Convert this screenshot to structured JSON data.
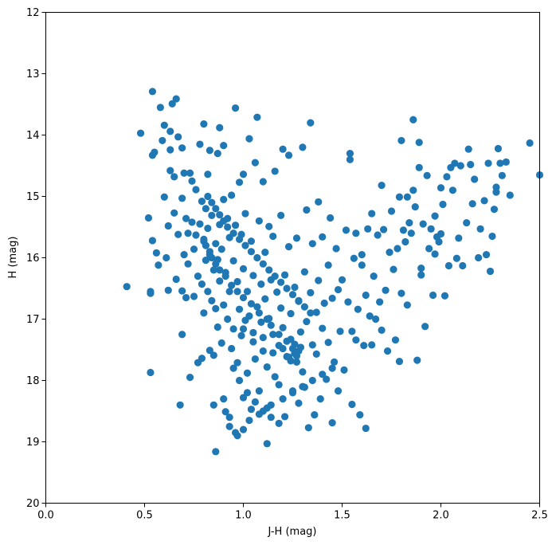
{
  "chart_data": {
    "type": "scatter",
    "title": "",
    "xlabel": "J-H (mag)",
    "ylabel": "H (mag)",
    "xlim": [
      0.0,
      2.5
    ],
    "ylim": [
      20,
      12
    ],
    "y_inverted": true,
    "grid": false,
    "legend": "none",
    "x_ticks": [
      "0.0",
      "0.5",
      "1.0",
      "1.5",
      "2.0",
      "2.5"
    ],
    "y_ticks": [
      "12",
      "13",
      "14",
      "15",
      "16",
      "17",
      "18",
      "19",
      "20"
    ],
    "marker_color": "#1f77b4",
    "points": [
      [
        0.41,
        16.47
      ],
      [
        0.48,
        13.97
      ],
      [
        0.52,
        15.35
      ],
      [
        0.53,
        16.55
      ],
      [
        0.53,
        16.58
      ],
      [
        0.53,
        17.87
      ],
      [
        0.54,
        13.29
      ],
      [
        0.54,
        14.33
      ],
      [
        0.54,
        15.72
      ],
      [
        0.55,
        14.28
      ],
      [
        0.56,
        15.92
      ],
      [
        0.57,
        16.12
      ],
      [
        0.58,
        13.55
      ],
      [
        0.59,
        14.09
      ],
      [
        0.6,
        13.84
      ],
      [
        0.6,
        15.01
      ],
      [
        0.61,
        16.0
      ],
      [
        0.62,
        15.48
      ],
      [
        0.62,
        16.53
      ],
      [
        0.63,
        13.94
      ],
      [
        0.63,
        14.24
      ],
      [
        0.63,
        14.58
      ],
      [
        0.64,
        13.49
      ],
      [
        0.65,
        14.68
      ],
      [
        0.65,
        15.27
      ],
      [
        0.66,
        13.41
      ],
      [
        0.66,
        16.35
      ],
      [
        0.67,
        14.03
      ],
      [
        0.67,
        15.62
      ],
      [
        0.68,
        18.4
      ],
      [
        0.69,
        14.21
      ],
      [
        0.69,
        15.03
      ],
      [
        0.69,
        16.54
      ],
      [
        0.69,
        17.25
      ],
      [
        0.7,
        14.62
      ],
      [
        0.7,
        15.95
      ],
      [
        0.71,
        15.36
      ],
      [
        0.71,
        16.65
      ],
      [
        0.72,
        15.6
      ],
      [
        0.72,
        16.1
      ],
      [
        0.73,
        17.95
      ],
      [
        0.73,
        14.62
      ],
      [
        0.74,
        14.75
      ],
      [
        0.74,
        15.42
      ],
      [
        0.75,
        16.63
      ],
      [
        0.75,
        15.86
      ],
      [
        0.76,
        15.63
      ],
      [
        0.76,
        14.89
      ],
      [
        0.77,
        17.71
      ],
      [
        0.77,
        16.3
      ],
      [
        0.78,
        14.15
      ],
      [
        0.78,
        15.45
      ],
      [
        0.79,
        15.08
      ],
      [
        0.79,
        16.43
      ],
      [
        0.79,
        17.64
      ],
      [
        0.8,
        13.82
      ],
      [
        0.8,
        15.73
      ],
      [
        0.8,
        16.9
      ],
      [
        0.81,
        15.2
      ],
      [
        0.81,
        16.04
      ],
      [
        0.82,
        14.64
      ],
      [
        0.82,
        15.52
      ],
      [
        0.82,
        16.55
      ],
      [
        0.83,
        14.25
      ],
      [
        0.83,
        15.95
      ],
      [
        0.83,
        17.51
      ],
      [
        0.84,
        15.31
      ],
      [
        0.84,
        16.7
      ],
      [
        0.85,
        17.59
      ],
      [
        0.85,
        16.2
      ],
      [
        0.85,
        18.4
      ],
      [
        0.86,
        19.16
      ],
      [
        0.86,
        15.77
      ],
      [
        0.86,
        16.83
      ],
      [
        0.87,
        14.3
      ],
      [
        0.87,
        16.03
      ],
      [
        0.87,
        17.13
      ],
      [
        0.88,
        13.88
      ],
      [
        0.88,
        15.46
      ],
      [
        0.88,
        16.38
      ],
      [
        0.89,
        15.86
      ],
      [
        0.89,
        17.39
      ],
      [
        0.9,
        14.17
      ],
      [
        0.9,
        15.05
      ],
      [
        0.9,
        16.77
      ],
      [
        0.91,
        18.51
      ],
      [
        0.91,
        16.24
      ],
      [
        0.92,
        15.36
      ],
      [
        0.92,
        17.0
      ],
      [
        0.93,
        15.67
      ],
      [
        0.93,
        18.75
      ],
      [
        0.93,
        16.55
      ],
      [
        0.94,
        17.48
      ],
      [
        0.94,
        14.98
      ],
      [
        0.95,
        16.05
      ],
      [
        0.95,
        17.16
      ],
      [
        0.96,
        13.56
      ],
      [
        0.96,
        18.85
      ],
      [
        0.96,
        15.47
      ],
      [
        0.97,
        16.39
      ],
      [
        0.97,
        17.71
      ],
      [
        0.98,
        14.77
      ],
      [
        0.98,
        16.84
      ],
      [
        0.99,
        15.62
      ],
      [
        0.99,
        17.27
      ],
      [
        1.0,
        14.64
      ],
      [
        1.0,
        16.18
      ],
      [
        1.0,
        18.28
      ],
      [
        1.01,
        17.02
      ],
      [
        1.01,
        15.28
      ],
      [
        1.02,
        16.55
      ],
      [
        1.02,
        17.88
      ],
      [
        1.03,
        14.06
      ],
      [
        1.03,
        16.95
      ],
      [
        1.04,
        15.73
      ],
      [
        1.04,
        18.47
      ],
      [
        1.05,
        16.29
      ],
      [
        1.05,
        17.37
      ],
      [
        1.06,
        14.45
      ],
      [
        1.06,
        17.65
      ],
      [
        1.07,
        13.71
      ],
      [
        1.07,
        16.8
      ],
      [
        1.08,
        15.4
      ],
      [
        1.08,
        18.17
      ],
      [
        1.09,
        16.43
      ],
      [
        1.09,
        17.05
      ],
      [
        1.1,
        14.76
      ],
      [
        1.1,
        17.52
      ],
      [
        1.11,
        15.91
      ],
      [
        1.11,
        16.67
      ],
      [
        1.12,
        19.03
      ],
      [
        1.12,
        17.78
      ],
      [
        1.13,
        15.49
      ],
      [
        1.13,
        16.99
      ],
      [
        1.14,
        18.4
      ],
      [
        1.14,
        16.36
      ],
      [
        1.15,
        17.25
      ],
      [
        1.15,
        15.65
      ],
      [
        1.16,
        14.59
      ],
      [
        1.16,
        17.94
      ],
      [
        1.17,
        16.56
      ],
      [
        1.18,
        17.43
      ],
      [
        1.18,
        18.07
      ],
      [
        1.19,
        15.31
      ],
      [
        1.19,
        16.82
      ],
      [
        1.2,
        14.23
      ],
      [
        1.2,
        17.14
      ],
      [
        1.21,
        18.59
      ],
      [
        1.21,
        16.28
      ],
      [
        1.22,
        17.61
      ],
      [
        1.23,
        14.33
      ],
      [
        1.23,
        15.82
      ],
      [
        1.24,
        16.91
      ],
      [
        1.24,
        17.33
      ],
      [
        1.25,
        18.17
      ],
      [
        1.25,
        17.48
      ],
      [
        1.26,
        16.48
      ],
      [
        1.26,
        17.56
      ],
      [
        1.27,
        15.68
      ],
      [
        1.27,
        17.7
      ],
      [
        1.28,
        18.37
      ],
      [
        1.28,
        16.71
      ],
      [
        1.29,
        17.21
      ],
      [
        1.3,
        14.2
      ],
      [
        1.3,
        17.86
      ],
      [
        1.31,
        16.23
      ],
      [
        1.31,
        18.11
      ],
      [
        1.32,
        15.22
      ],
      [
        1.32,
        17.04
      ],
      [
        1.33,
        18.77
      ],
      [
        1.34,
        13.8
      ],
      [
        1.34,
        16.57
      ],
      [
        1.35,
        17.42
      ],
      [
        1.35,
        15.77
      ],
      [
        1.36,
        18.56
      ],
      [
        1.37,
        16.89
      ],
      [
        1.37,
        17.57
      ],
      [
        1.38,
        15.09
      ],
      [
        1.38,
        16.37
      ],
      [
        1.39,
        18.3
      ],
      [
        1.4,
        17.15
      ],
      [
        1.4,
        15.66
      ],
      [
        1.41,
        16.74
      ],
      [
        1.42,
        17.98
      ],
      [
        1.43,
        16.12
      ],
      [
        1.43,
        17.38
      ],
      [
        1.44,
        15.35
      ],
      [
        1.45,
        18.69
      ],
      [
        1.45,
        16.66
      ],
      [
        1.46,
        17.7
      ],
      [
        1.47,
        15.85
      ],
      [
        1.48,
        16.52
      ],
      [
        1.48,
        18.17
      ],
      [
        1.49,
        17.2
      ],
      [
        1.5,
        16.36
      ],
      [
        1.51,
        17.83
      ],
      [
        1.52,
        15.55
      ],
      [
        1.53,
        16.72
      ],
      [
        1.54,
        14.3
      ],
      [
        1.54,
        14.4
      ],
      [
        1.55,
        17.2
      ],
      [
        1.55,
        18.39
      ],
      [
        1.56,
        16.01
      ],
      [
        1.57,
        15.6
      ],
      [
        1.57,
        17.34
      ],
      [
        1.58,
        16.84
      ],
      [
        1.59,
        18.56
      ],
      [
        1.6,
        16.12
      ],
      [
        1.6,
        15.95
      ],
      [
        1.61,
        17.43
      ],
      [
        1.62,
        18.78
      ],
      [
        1.62,
        16.61
      ],
      [
        1.63,
        15.53
      ],
      [
        1.64,
        16.95
      ],
      [
        1.65,
        17.42
      ],
      [
        1.65,
        15.28
      ],
      [
        1.66,
        16.3
      ],
      [
        1.67,
        17.0
      ],
      [
        1.68,
        15.63
      ],
      [
        1.69,
        16.72
      ],
      [
        1.7,
        14.82
      ],
      [
        1.7,
        17.18
      ],
      [
        1.71,
        15.54
      ],
      [
        1.72,
        16.53
      ],
      [
        1.73,
        17.52
      ],
      [
        1.74,
        15.91
      ],
      [
        1.75,
        15.24
      ],
      [
        1.76,
        16.19
      ],
      [
        1.77,
        17.34
      ],
      [
        1.78,
        15.85
      ],
      [
        1.79,
        15.01
      ],
      [
        1.79,
        17.69
      ],
      [
        1.8,
        14.09
      ],
      [
        1.8,
        16.58
      ],
      [
        1.81,
        15.55
      ],
      [
        1.82,
        15.74
      ],
      [
        1.83,
        15.01
      ],
      [
        1.83,
        16.77
      ],
      [
        1.84,
        15.43
      ],
      [
        1.85,
        15.6
      ],
      [
        1.86,
        13.75
      ],
      [
        1.86,
        14.9
      ],
      [
        1.87,
        15.17
      ],
      [
        1.88,
        17.67
      ],
      [
        1.89,
        14.53
      ],
      [
        1.89,
        14.12
      ],
      [
        1.9,
        16.17
      ],
      [
        1.9,
        16.28
      ],
      [
        1.91,
        15.45
      ],
      [
        1.92,
        17.12
      ],
      [
        1.93,
        14.66
      ],
      [
        1.94,
        15.85
      ],
      [
        1.95,
        15.53
      ],
      [
        1.96,
        16.61
      ],
      [
        1.97,
        15.32
      ],
      [
        1.97,
        15.94
      ],
      [
        1.98,
        15.66
      ],
      [
        1.99,
        15.74
      ],
      [
        2.0,
        15.61
      ],
      [
        2.0,
        14.86
      ],
      [
        2.01,
        15.13
      ],
      [
        2.02,
        16.62
      ],
      [
        2.03,
        14.68
      ],
      [
        2.04,
        16.13
      ],
      [
        2.05,
        14.53
      ],
      [
        2.06,
        14.9
      ],
      [
        2.07,
        14.46
      ],
      [
        2.08,
        16.01
      ],
      [
        2.09,
        15.68
      ],
      [
        2.1,
        14.5
      ],
      [
        2.11,
        16.13
      ],
      [
        2.13,
        15.43
      ],
      [
        2.14,
        14.23
      ],
      [
        2.15,
        14.48
      ],
      [
        2.16,
        15.12
      ],
      [
        2.17,
        14.72
      ],
      [
        2.19,
        16.0
      ],
      [
        2.2,
        15.53
      ],
      [
        2.22,
        15.07
      ],
      [
        2.23,
        15.95
      ],
      [
        2.24,
        14.46
      ],
      [
        2.25,
        16.22
      ],
      [
        2.26,
        15.65
      ],
      [
        2.27,
        15.21
      ],
      [
        2.28,
        14.85
      ],
      [
        2.28,
        14.93
      ],
      [
        2.29,
        14.22
      ],
      [
        2.3,
        14.46
      ],
      [
        2.31,
        14.66
      ],
      [
        2.33,
        14.44
      ],
      [
        2.35,
        14.98
      ],
      [
        2.45,
        14.13
      ],
      [
        2.5,
        14.65
      ],
      [
        1.0,
        17.16
      ],
      [
        1.05,
        17.22
      ],
      [
        1.1,
        17.3
      ],
      [
        1.15,
        17.55
      ],
      [
        1.2,
        17.48
      ],
      [
        1.23,
        17.62
      ],
      [
        1.24,
        17.68
      ],
      [
        1.27,
        17.6
      ],
      [
        1.28,
        17.52
      ],
      [
        1.29,
        17.46
      ],
      [
        1.26,
        17.41
      ],
      [
        1.22,
        17.36
      ],
      [
        1.18,
        17.25
      ],
      [
        1.14,
        17.1
      ],
      [
        1.12,
        17.0
      ],
      [
        1.08,
        16.9
      ],
      [
        1.04,
        16.75
      ],
      [
        1.0,
        16.65
      ],
      [
        0.97,
        16.55
      ],
      [
        0.94,
        16.45
      ],
      [
        0.91,
        16.3
      ],
      [
        0.88,
        16.2
      ],
      [
        0.86,
        16.1
      ],
      [
        0.84,
        16.0
      ],
      [
        0.83,
        15.9
      ],
      [
        0.81,
        15.8
      ],
      [
        0.8,
        15.7
      ],
      [
        0.82,
        15.0
      ],
      [
        0.84,
        15.1
      ],
      [
        0.86,
        15.2
      ],
      [
        0.88,
        15.3
      ],
      [
        0.9,
        15.4
      ],
      [
        0.92,
        15.5
      ],
      [
        0.95,
        15.6
      ],
      [
        0.98,
        15.7
      ],
      [
        1.01,
        15.8
      ],
      [
        1.04,
        15.9
      ],
      [
        1.07,
        16.0
      ],
      [
        1.1,
        16.1
      ],
      [
        1.13,
        16.2
      ],
      [
        1.16,
        16.3
      ],
      [
        1.19,
        16.4
      ],
      [
        1.22,
        16.5
      ],
      [
        1.25,
        16.6
      ],
      [
        1.28,
        16.7
      ],
      [
        1.31,
        16.8
      ],
      [
        1.34,
        16.9
      ],
      [
        0.95,
        17.8
      ],
      [
        0.98,
        18.0
      ],
      [
        1.02,
        18.2
      ],
      [
        1.06,
        18.35
      ],
      [
        1.1,
        18.5
      ],
      [
        1.14,
        18.6
      ],
      [
        1.18,
        18.7
      ],
      [
        0.9,
        18.3
      ],
      [
        0.93,
        18.6
      ],
      [
        0.97,
        18.9
      ],
      [
        1.0,
        18.8
      ],
      [
        1.03,
        18.65
      ],
      [
        1.08,
        18.55
      ],
      [
        1.12,
        18.45
      ],
      [
        1.2,
        18.3
      ],
      [
        1.25,
        18.2
      ],
      [
        1.3,
        18.1
      ],
      [
        1.35,
        18.0
      ],
      [
        1.4,
        17.9
      ],
      [
        1.45,
        17.8
      ]
    ]
  }
}
